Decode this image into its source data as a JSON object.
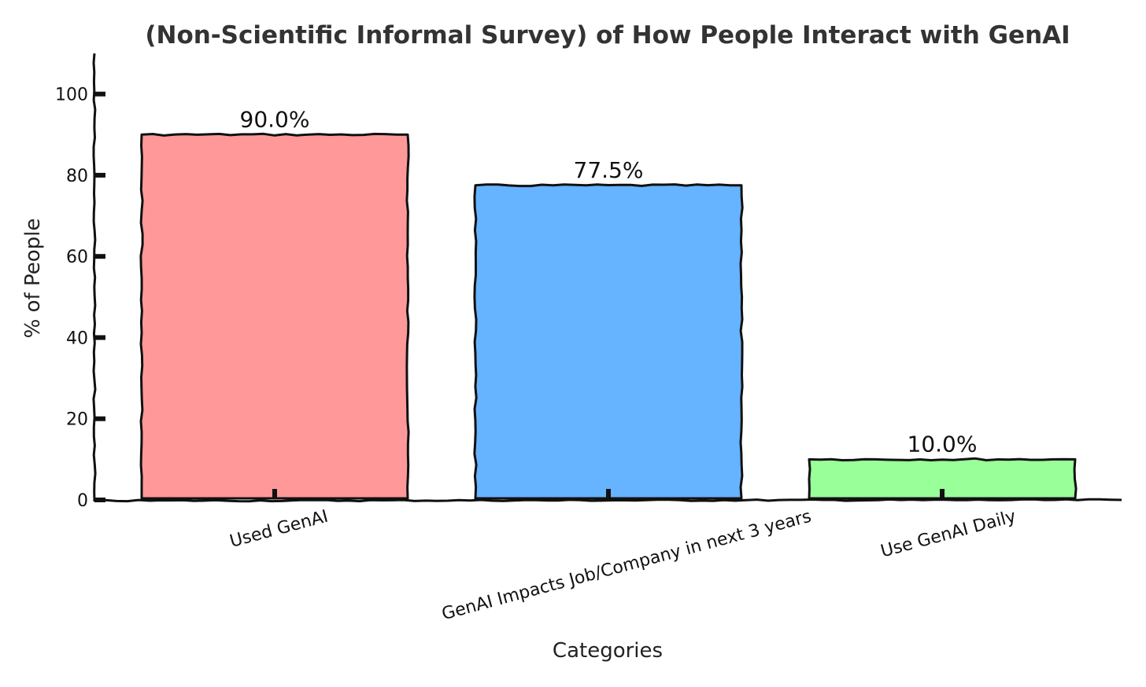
{
  "chart_data": {
    "type": "bar",
    "title": "(Non-Scientific Informal Survey) of How People Interact with GenAI",
    "xlabel": "Categories",
    "ylabel": "% of People",
    "categories": [
      "Used GenAI",
      "GenAI Impacts Job/Company in next 3 years",
      "Use GenAI Daily"
    ],
    "values": [
      90.0,
      77.5,
      10.0
    ],
    "data_labels": [
      "90.0%",
      "77.5%",
      "10.0%"
    ],
    "colors": [
      "#ff9999",
      "#66b3ff",
      "#99ff99"
    ],
    "ylim": [
      0,
      110
    ],
    "yticks": [
      0,
      20,
      40,
      60,
      80,
      100
    ],
    "grid": false,
    "legend": "none",
    "style": "xkcd"
  }
}
